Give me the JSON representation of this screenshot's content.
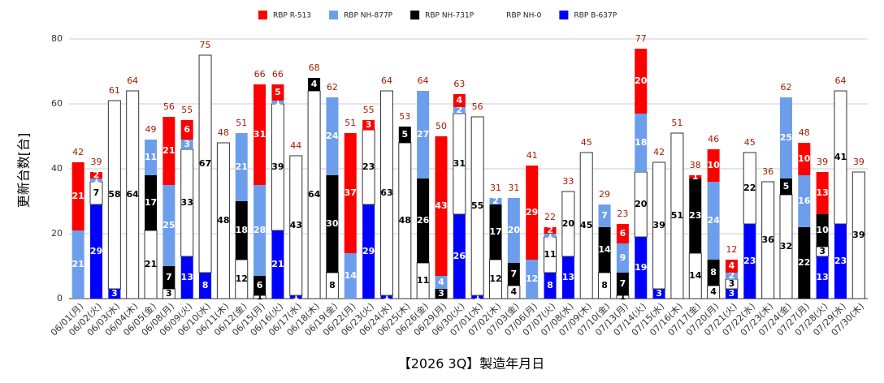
{
  "chart_data": {
    "type": "stacked_bar",
    "x_label": "【2026 3Q】製造年月日",
    "y_label": "更新台数[台]",
    "ylim": [
      0,
      80
    ],
    "yticks": [
      0,
      20,
      40,
      60,
      80
    ],
    "grid": true,
    "legend": "top",
    "categories": [
      "06/01(月)",
      "06/02(火)",
      "06/03(水)",
      "06/04(木)",
      "06/05(金)",
      "06/08(月)",
      "06/09(火)",
      "06/10(水)",
      "06/11(木)",
      "06/12(金)",
      "06/15(月)",
      "06/16(火)",
      "06/17(水)",
      "06/18(木)",
      "06/19(金)",
      "06/22(月)",
      "06/23(火)",
      "06/24(水)",
      "06/25(木)",
      "06/26(金)",
      "06/29(月)",
      "06/30(火)",
      "07/01(水)",
      "07/02(木)",
      "07/03(金)",
      "07/06(月)",
      "07/07(火)",
      "07/08(水)",
      "07/09(木)",
      "07/10(金)",
      "07/13(月)",
      "07/14(火)",
      "07/15(水)",
      "07/16(木)",
      "07/17(金)",
      "07/20(月)",
      "07/21(火)",
      "07/22(水)",
      "07/23(木)",
      "07/24(金)",
      "07/27(月)",
      "07/28(火)",
      "07/29(水)",
      "07/30(木)"
    ],
    "series": [
      {
        "name": "RBP R-513",
        "color": "#ff0000",
        "values": [
          21,
          2,
          null,
          null,
          null,
          21,
          6,
          null,
          null,
          null,
          31,
          5,
          null,
          null,
          null,
          37,
          3,
          null,
          null,
          null,
          43,
          4,
          null,
          null,
          null,
          29,
          2,
          null,
          null,
          null,
          6,
          20,
          null,
          null,
          1,
          10,
          4,
          null,
          null,
          null,
          10,
          13,
          null,
          null
        ]
      },
      {
        "name": "RBP NH-877P",
        "color": "#6d9eeb",
        "values": [
          21,
          1,
          null,
          null,
          11,
          25,
          3,
          null,
          null,
          21,
          28,
          1,
          null,
          null,
          24,
          14,
          null,
          null,
          null,
          27,
          4,
          2,
          null,
          2,
          20,
          12,
          1,
          null,
          null,
          7,
          9,
          18,
          null,
          null,
          null,
          24,
          2,
          null,
          null,
          25,
          16,
          null,
          null,
          null
        ]
      },
      {
        "name": "RBP NH-731P",
        "color": "#000000",
        "values": [
          null,
          null,
          null,
          null,
          17,
          7,
          null,
          null,
          null,
          18,
          6,
          null,
          null,
          4,
          30,
          null,
          null,
          null,
          5,
          26,
          3,
          null,
          null,
          17,
          7,
          null,
          null,
          null,
          null,
          14,
          7,
          null,
          null,
          null,
          23,
          8,
          null,
          null,
          null,
          5,
          22,
          10,
          null,
          null
        ]
      },
      {
        "name": "RBP NH-0",
        "color": "#ffffff",
        "values": [
          null,
          7,
          58,
          64,
          21,
          3,
          33,
          67,
          48,
          12,
          1,
          39,
          43,
          64,
          8,
          null,
          23,
          63,
          48,
          11,
          null,
          31,
          55,
          12,
          4,
          null,
          11,
          20,
          45,
          8,
          1,
          20,
          39,
          51,
          14,
          4,
          3,
          22,
          36,
          32,
          null,
          3,
          41,
          39
        ]
      },
      {
        "name": "RBP B-637P",
        "color": "#0000ff",
        "values": [
          null,
          29,
          3,
          null,
          null,
          null,
          13,
          8,
          null,
          null,
          null,
          21,
          1,
          null,
          null,
          null,
          29,
          1,
          null,
          null,
          null,
          26,
          1,
          null,
          null,
          null,
          8,
          13,
          null,
          null,
          null,
          19,
          3,
          null,
          null,
          null,
          3,
          23,
          null,
          null,
          null,
          13,
          23,
          null
        ]
      }
    ],
    "totals": [
      42,
      39,
      61,
      64,
      49,
      56,
      55,
      75,
      48,
      51,
      66,
      66,
      44,
      68,
      62,
      51,
      55,
      64,
      53,
      64,
      50,
      63,
      56,
      31,
      31,
      41,
      22,
      33,
      45,
      29,
      23,
      77,
      42,
      51,
      38,
      46,
      12,
      45,
      36,
      62,
      48,
      39,
      64,
      39
    ]
  }
}
